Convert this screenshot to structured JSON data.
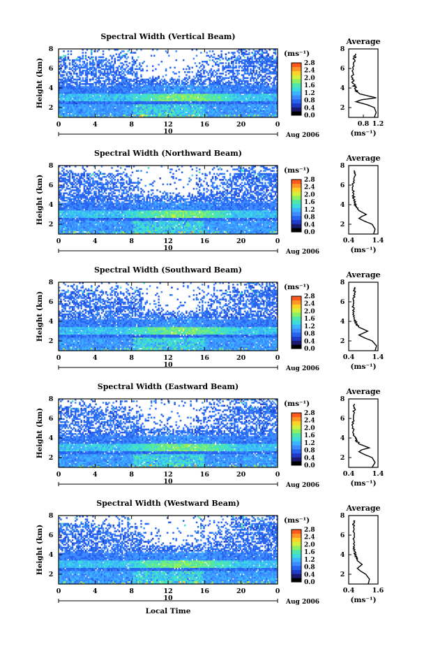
{
  "figure": {
    "xlabel": "Local Time",
    "date_label": "Aug 2006",
    "day_label": "10",
    "colorbar_unit": "(ms⁻¹)",
    "average_title": "Average",
    "average_xlabel": "(ms⁻¹)"
  },
  "chart_data": [
    {
      "type": "heatmap",
      "title": "Spectral Width (Vertical Beam)",
      "ylabel": "Height (km)",
      "x_ticks": [
        "0",
        "4",
        "8",
        "12",
        "16",
        "20",
        "0"
      ],
      "y_ticks": [
        "2",
        "4",
        "6",
        "8"
      ],
      "xlim": [
        0,
        24
      ],
      "ylim": [
        1,
        8
      ],
      "colorbar": {
        "min": 0.0,
        "max": 2.8,
        "ticks": [
          "0.0",
          "0.4",
          "0.8",
          "1.2",
          "1.6",
          "2.0",
          "2.4",
          "2.8"
        ]
      },
      "average_profile": {
        "xlim": [
          0.4,
          1.2
        ],
        "x_ticks": [
          "0.8",
          "1.2"
        ],
        "y_ticks": [
          "2",
          "4",
          "6",
          "8"
        ],
        "height": [
          1.0,
          1.5,
          2.0,
          2.3,
          2.6,
          2.8,
          3.0,
          3.4,
          3.8,
          4.2,
          5.0,
          6.0,
          7.0,
          7.5
        ],
        "width": [
          1.1,
          1.15,
          1.1,
          0.9,
          0.6,
          0.75,
          1.15,
          0.7,
          0.6,
          0.55,
          0.5,
          0.5,
          0.55,
          0.6
        ]
      }
    },
    {
      "type": "heatmap",
      "title": "Spectral Width (Northward Beam)",
      "ylabel": "Height (km)",
      "x_ticks": [
        "0",
        "4",
        "8",
        "12",
        "16",
        "20",
        "0"
      ],
      "y_ticks": [
        "2",
        "4",
        "6",
        "8"
      ],
      "xlim": [
        0,
        24
      ],
      "ylim": [
        1,
        8
      ],
      "colorbar": {
        "min": 0.0,
        "max": 2.8,
        "ticks": [
          "0.0",
          "0.4",
          "0.8",
          "1.2",
          "1.6",
          "2.0",
          "2.4",
          "2.8"
        ]
      },
      "average_profile": {
        "xlim": [
          0.4,
          1.4
        ],
        "x_ticks": [
          "0.4",
          "1.4"
        ],
        "y_ticks": [
          "2",
          "4",
          "6",
          "8"
        ],
        "height": [
          1.0,
          1.5,
          2.0,
          2.3,
          2.6,
          2.8,
          3.0,
          3.4,
          3.8,
          4.2,
          5.0,
          6.0,
          7.0,
          7.5
        ],
        "width": [
          1.25,
          1.3,
          1.2,
          0.95,
          0.75,
          0.85,
          1.0,
          0.75,
          0.65,
          0.6,
          0.55,
          0.55,
          0.6,
          0.6
        ]
      }
    },
    {
      "type": "heatmap",
      "title": "Spectral Width (Southward Beam)",
      "ylabel": "Height (km)",
      "x_ticks": [
        "0",
        "4",
        "8",
        "12",
        "16",
        "20",
        "0"
      ],
      "y_ticks": [
        "2",
        "4",
        "6",
        "8"
      ],
      "xlim": [
        0,
        24
      ],
      "ylim": [
        1,
        8
      ],
      "colorbar": {
        "min": 0.0,
        "max": 2.8,
        "ticks": [
          "0.0",
          "0.4",
          "0.8",
          "1.2",
          "1.6",
          "2.0",
          "2.4",
          "2.8"
        ]
      },
      "average_profile": {
        "xlim": [
          0.4,
          1.4
        ],
        "x_ticks": [
          "0.4",
          "1.4"
        ],
        "y_ticks": [
          "2",
          "4",
          "6",
          "8"
        ],
        "height": [
          1.0,
          1.5,
          2.0,
          2.3,
          2.6,
          2.8,
          3.0,
          3.4,
          3.8,
          4.2,
          5.0,
          6.0,
          7.0,
          7.5
        ],
        "width": [
          1.3,
          1.35,
          1.2,
          0.95,
          0.75,
          0.9,
          1.05,
          0.75,
          0.65,
          0.6,
          0.55,
          0.55,
          0.6,
          0.6
        ]
      }
    },
    {
      "type": "heatmap",
      "title": "Spectral Width (Eastward Beam)",
      "ylabel": "Height (km)",
      "x_ticks": [
        "0",
        "4",
        "8",
        "12",
        "16",
        "20",
        "0"
      ],
      "y_ticks": [
        "2",
        "4",
        "6",
        "8"
      ],
      "xlim": [
        0,
        24
      ],
      "ylim": [
        1,
        8
      ],
      "colorbar": {
        "min": 0.0,
        "max": 2.8,
        "ticks": [
          "0.0",
          "0.4",
          "0.8",
          "1.2",
          "1.6",
          "2.0",
          "2.4",
          "2.8"
        ]
      },
      "average_profile": {
        "xlim": [
          0.4,
          1.4
        ],
        "x_ticks": [
          "0.4",
          "1.4"
        ],
        "y_ticks": [
          "2",
          "4",
          "6",
          "8"
        ],
        "height": [
          1.0,
          1.5,
          2.0,
          2.3,
          2.6,
          2.8,
          3.0,
          3.4,
          3.8,
          4.2,
          5.0,
          6.0,
          7.0,
          7.5
        ],
        "width": [
          1.2,
          1.3,
          1.2,
          0.95,
          0.75,
          0.85,
          1.1,
          0.75,
          0.65,
          0.6,
          0.55,
          0.55,
          0.6,
          0.6
        ]
      }
    },
    {
      "type": "heatmap",
      "title": "Spectral Width (Westward Beam)",
      "ylabel": "Height (km)",
      "x_ticks": [
        "0",
        "4",
        "8",
        "12",
        "16",
        "20",
        "0"
      ],
      "y_ticks": [
        "2",
        "4",
        "6",
        "8"
      ],
      "xlim": [
        0,
        24
      ],
      "ylim": [
        1,
        8
      ],
      "colorbar": {
        "min": 0.0,
        "max": 2.8,
        "ticks": [
          "0.0",
          "0.4",
          "0.8",
          "1.2",
          "1.6",
          "2.0",
          "2.4",
          "2.8"
        ]
      },
      "average_profile": {
        "xlim": [
          0.4,
          1.6
        ],
        "x_ticks": [
          "0.4",
          "1.6"
        ],
        "y_ticks": [
          "2",
          "4",
          "6",
          "8"
        ],
        "height": [
          1.0,
          1.5,
          2.0,
          2.3,
          2.6,
          2.8,
          3.0,
          3.4,
          3.8,
          4.2,
          5.0,
          6.0,
          7.0,
          7.5
        ],
        "width": [
          1.2,
          1.25,
          1.1,
          0.9,
          0.75,
          0.85,
          0.95,
          0.75,
          0.7,
          0.65,
          0.6,
          0.6,
          0.6,
          0.6
        ]
      }
    }
  ],
  "colors": {
    "colormap": [
      "#1a1a6e",
      "#1e3cc8",
      "#2864f0",
      "#3c8cff",
      "#3cb4ff",
      "#3cdcdc",
      "#50e6aa",
      "#8cf064",
      "#d2f03c",
      "#ffd228",
      "#ff9628",
      "#ff5a1e"
    ],
    "lowest_band": "#000000"
  }
}
